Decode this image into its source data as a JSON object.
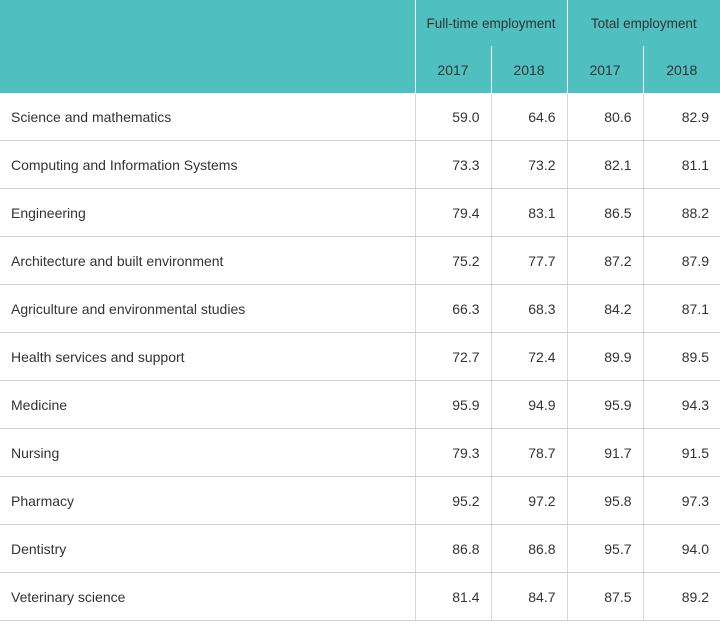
{
  "chart_data": {
    "type": "table",
    "column_groups": [
      {
        "name": "Full-time employment",
        "years": [
          "2017",
          "2018"
        ]
      },
      {
        "name": "Total employment",
        "years": [
          "2017",
          "2018"
        ]
      }
    ],
    "rows": [
      {
        "label": "Science and mathematics",
        "values": [
          "59.0",
          "64.6",
          "80.6",
          "82.9"
        ]
      },
      {
        "label": "Computing and Information Systems",
        "values": [
          "73.3",
          "73.2",
          "82.1",
          "81.1"
        ]
      },
      {
        "label": "Engineering",
        "values": [
          "79.4",
          "83.1",
          "86.5",
          "88.2"
        ]
      },
      {
        "label": "Architecture and built environment",
        "values": [
          "75.2",
          "77.7",
          "87.2",
          "87.9"
        ]
      },
      {
        "label": "Agriculture and environmental studies",
        "values": [
          "66.3",
          "68.3",
          "84.2",
          "87.1"
        ]
      },
      {
        "label": "Health services and support",
        "values": [
          "72.7",
          "72.4",
          "89.9",
          "89.5"
        ]
      },
      {
        "label": "Medicine",
        "values": [
          "95.9",
          "94.9",
          "95.9",
          "94.3"
        ]
      },
      {
        "label": "Nursing",
        "values": [
          "79.3",
          "78.7",
          "91.7",
          "91.5"
        ]
      },
      {
        "label": "Pharmacy",
        "values": [
          "95.2",
          "97.2",
          "95.8",
          "97.3"
        ]
      },
      {
        "label": "Dentistry",
        "values": [
          "86.8",
          "86.8",
          "95.7",
          "94.0"
        ]
      },
      {
        "label": "Veterinary science",
        "values": [
          "81.4",
          "84.7",
          "87.5",
          "89.2"
        ]
      }
    ]
  },
  "colors": {
    "header_bg": "#4fbfbf",
    "text": "#333333",
    "grid": "#cfcfcf"
  }
}
